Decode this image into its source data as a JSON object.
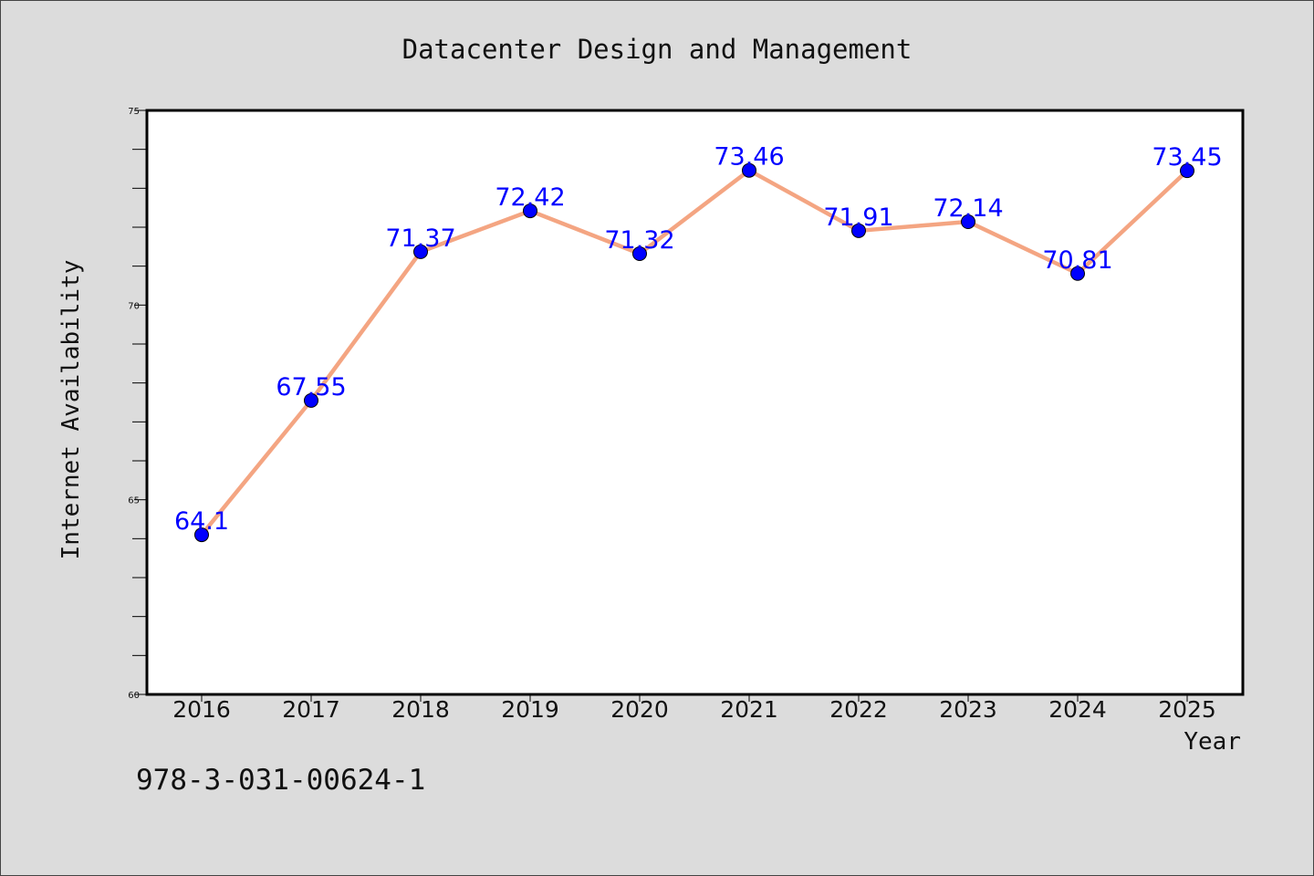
{
  "chart_data": {
    "type": "line",
    "title": "Datacenter Design and Management",
    "xlabel": "Year",
    "ylabel": "Internet Availability",
    "categories": [
      "2016",
      "2017",
      "2018",
      "2019",
      "2020",
      "2021",
      "2022",
      "2023",
      "2024",
      "2025"
    ],
    "series": [
      {
        "values": [
          64.1,
          67.55,
          71.37,
          72.42,
          71.32,
          73.46,
          71.91,
          72.14,
          70.81,
          73.45
        ],
        "line_color": "#f4a582",
        "marker_color": "#0000ff",
        "label_color": "#0000ff"
      }
    ],
    "data_labels": [
      "64.1",
      "67.55",
      "71.37",
      "72.42",
      "71.32",
      "73.46",
      "71.91",
      "72.14",
      "70.81",
      "73.45"
    ],
    "ylim": [
      60,
      75
    ],
    "yticks": [
      "60",
      "65",
      "70",
      "75"
    ],
    "grid": false,
    "legend": false
  },
  "footer": {
    "isbn": "978-3-031-00624-1"
  },
  "colors": {
    "background": "#dcdcdc",
    "plot_background": "#ffffff"
  }
}
